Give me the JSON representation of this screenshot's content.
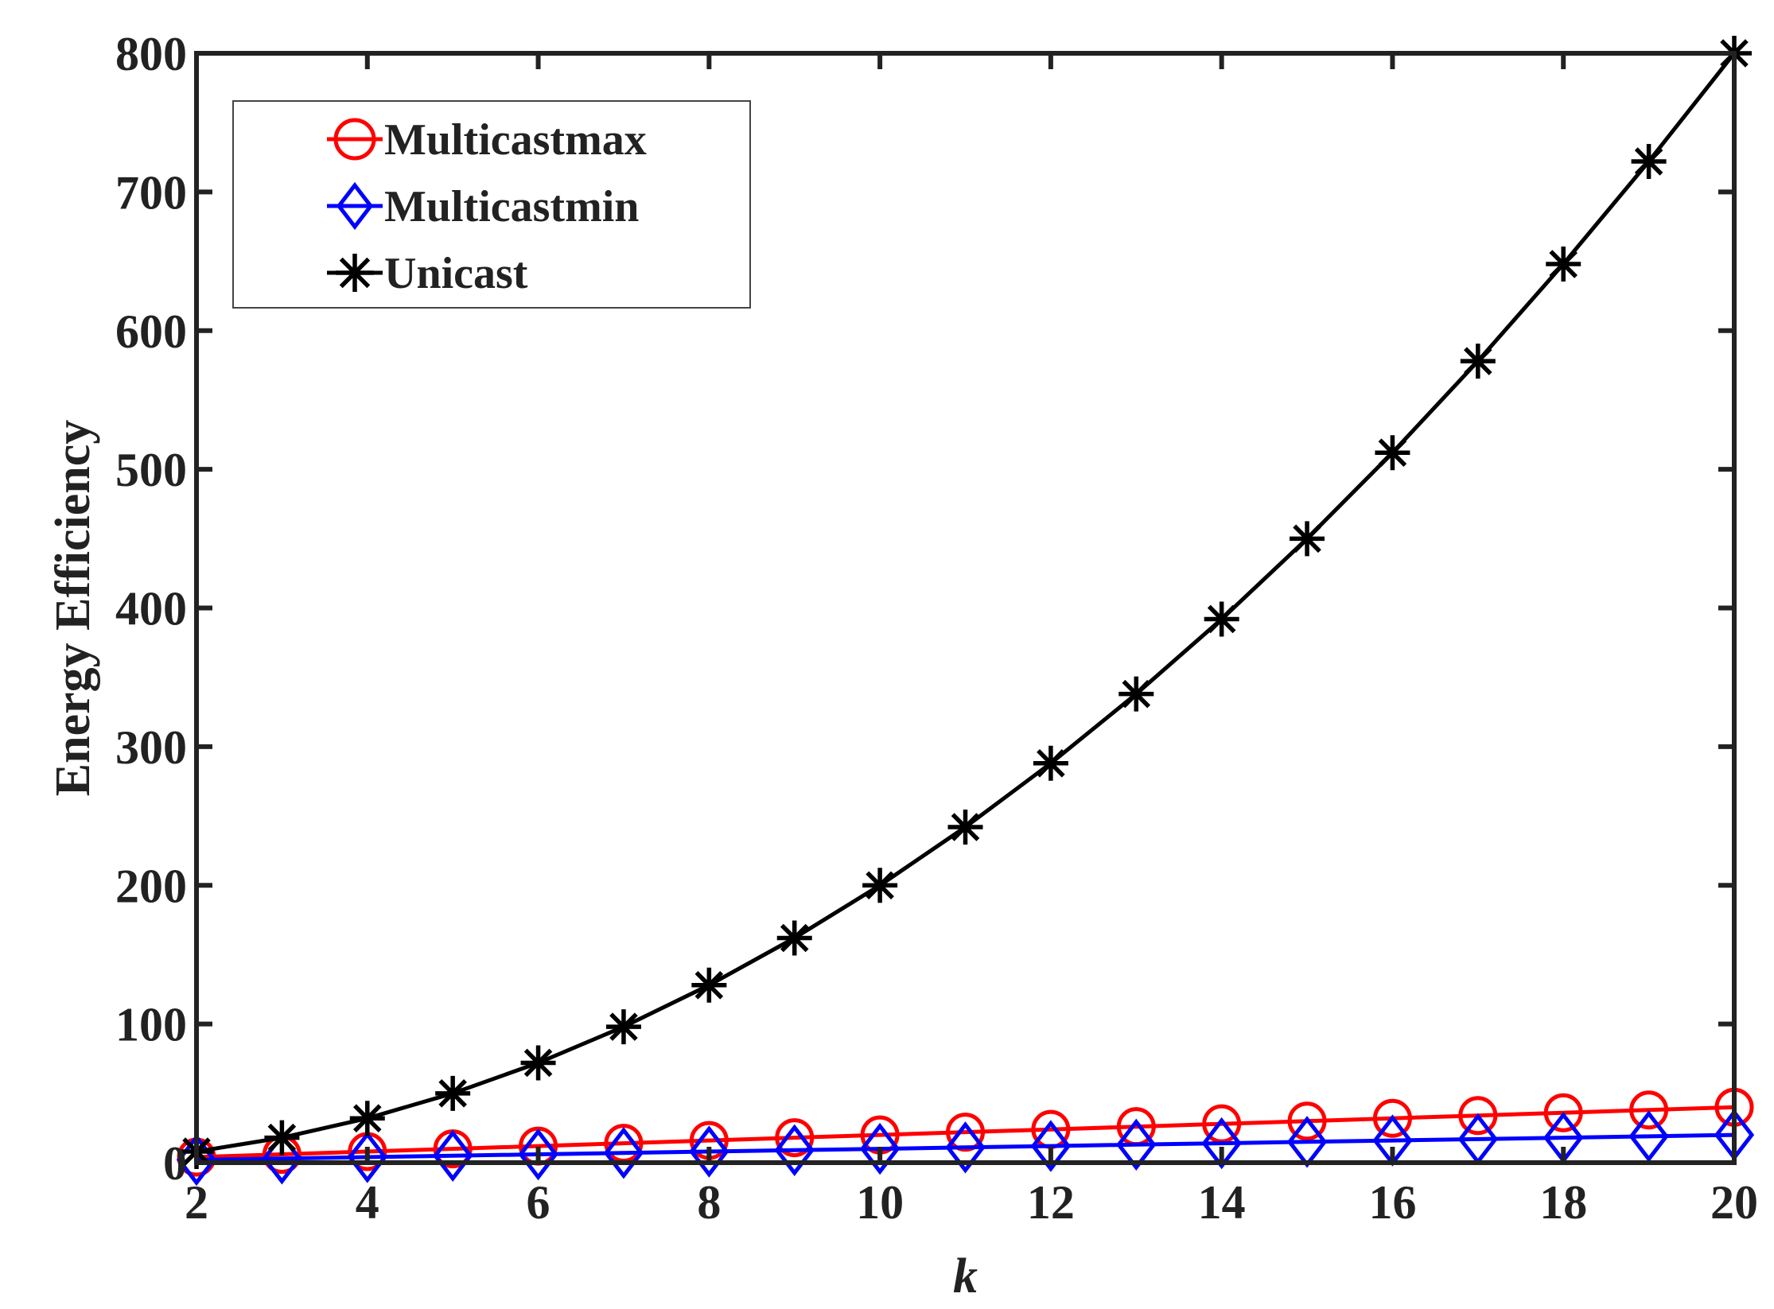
{
  "chart_data": {
    "type": "line",
    "title": "",
    "xlabel": "k",
    "ylabel": "Energy Efficiency",
    "xlim": [
      2,
      20
    ],
    "ylim": [
      0,
      800
    ],
    "x": [
      2,
      3,
      4,
      5,
      6,
      7,
      8,
      9,
      10,
      11,
      12,
      13,
      14,
      15,
      16,
      17,
      18,
      19,
      20
    ],
    "xticks": [
      2,
      4,
      6,
      8,
      10,
      12,
      14,
      16,
      18,
      20
    ],
    "yticks": [
      0,
      100,
      200,
      300,
      400,
      500,
      600,
      700,
      800
    ],
    "legend_position": "top-left",
    "grid": false,
    "series": [
      {
        "name": "Multicastmax",
        "color": "#ff0000",
        "marker": "circle",
        "values": [
          4,
          6,
          8,
          10,
          12,
          14,
          16,
          18,
          20,
          22,
          24,
          26,
          28,
          30,
          32,
          34,
          36,
          38,
          40
        ]
      },
      {
        "name": "Multicastmin",
        "color": "#0000ff",
        "marker": "diamond",
        "values": [
          2,
          3,
          4,
          5,
          6,
          7,
          8,
          9,
          10,
          11,
          12,
          13,
          14,
          15,
          16,
          17,
          18,
          19,
          20
        ]
      },
      {
        "name": "Unicast",
        "color": "#000000",
        "marker": "asterisk",
        "values": [
          8,
          18,
          32,
          50,
          72,
          98,
          128,
          162,
          200,
          242,
          288,
          338,
          392,
          450,
          512,
          578,
          648,
          722,
          800
        ]
      }
    ]
  }
}
